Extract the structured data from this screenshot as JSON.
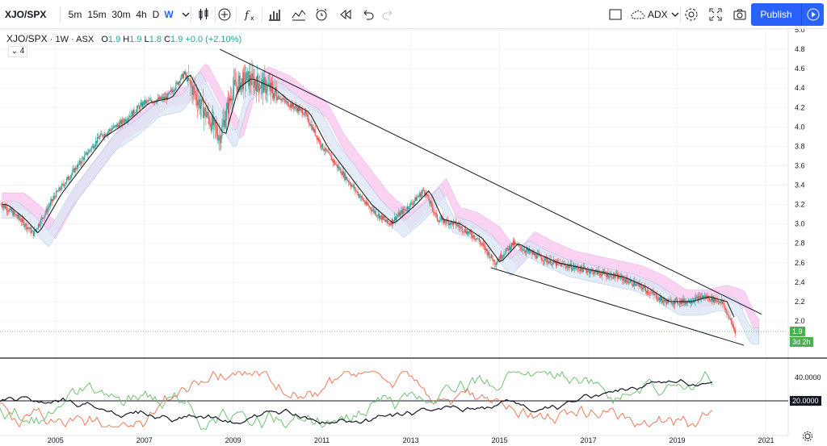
{
  "toolbar": {
    "symbol": "XJO/SPX",
    "intervals": [
      "5m",
      "15m",
      "30m",
      "4h",
      "D",
      "W"
    ],
    "active_interval": "W",
    "compare_label": "ADX",
    "publish_label": "Publish"
  },
  "legend": {
    "symbol": "XJO/SPX",
    "interval": "1W",
    "exchange": "ASX",
    "open": "1.9",
    "high": "1.9",
    "low": "1.8",
    "close": "1.9",
    "change": "+0.0 (+2.10%)",
    "collapse_label": "4"
  },
  "colors": {
    "accent": "#2962ff",
    "up": "#26a69a",
    "down": "#ef5350",
    "cloud": "#f5b8e6",
    "cloud_alt": "#c7dcf2",
    "price_tag": "#4caf50"
  },
  "chart_data": {
    "type": "candlestick",
    "main_pane": {
      "y_ticks": [
        "5.0",
        "4.8",
        "4.6",
        "4.4",
        "4.2",
        "4.0",
        "3.8",
        "3.6",
        "3.4",
        "3.2",
        "3.0",
        "2.8",
        "2.6",
        "2.4",
        "2.2",
        "2.0"
      ],
      "ylim": [
        1.7,
        5.0
      ],
      "price_series": {
        "x": [
          2003.8,
          2004.2,
          2004.5,
          2005.0,
          2005.5,
          2006.0,
          2006.5,
          2007.0,
          2007.5,
          2007.9,
          2008.3,
          2008.7,
          2009.0,
          2009.3,
          2009.8,
          2010.2,
          2010.6,
          2011.0,
          2011.5,
          2012.0,
          2012.5,
          2013.0,
          2013.3,
          2013.6,
          2014.0,
          2014.5,
          2014.9,
          2015.3,
          2015.7,
          2016.2,
          2016.7,
          2017.2,
          2017.7,
          2018.2,
          2018.7,
          2019.2,
          2019.6,
          2020.0,
          2020.3
        ],
        "y": [
          3.2,
          3.05,
          2.9,
          3.3,
          3.6,
          3.9,
          4.05,
          4.25,
          4.3,
          4.55,
          4.2,
          3.9,
          4.4,
          4.5,
          4.4,
          4.25,
          4.15,
          3.8,
          3.5,
          3.2,
          3.0,
          3.2,
          3.35,
          3.05,
          3.0,
          2.85,
          2.6,
          2.8,
          2.7,
          2.6,
          2.55,
          2.5,
          2.45,
          2.35,
          2.2,
          2.2,
          2.25,
          2.2,
          1.9
        ]
      },
      "trendlines": [
        {
          "name": "upper",
          "from": [
            2008.7,
            4.8
          ],
          "to": [
            2020.9,
            2.07
          ]
        },
        {
          "name": "lower",
          "from": [
            2014.8,
            2.55
          ],
          "to": [
            2020.5,
            1.75
          ]
        }
      ],
      "last_price_label": "1.9",
      "countdown_label": "3d 2h"
    },
    "adx_pane": {
      "y_ticks": [
        "40.0000"
      ],
      "level_label": "20.0000"
    },
    "x_ticks": [
      "2005",
      "2007",
      "2009",
      "2011",
      "2013",
      "2015",
      "2017",
      "2019",
      "2021"
    ]
  }
}
